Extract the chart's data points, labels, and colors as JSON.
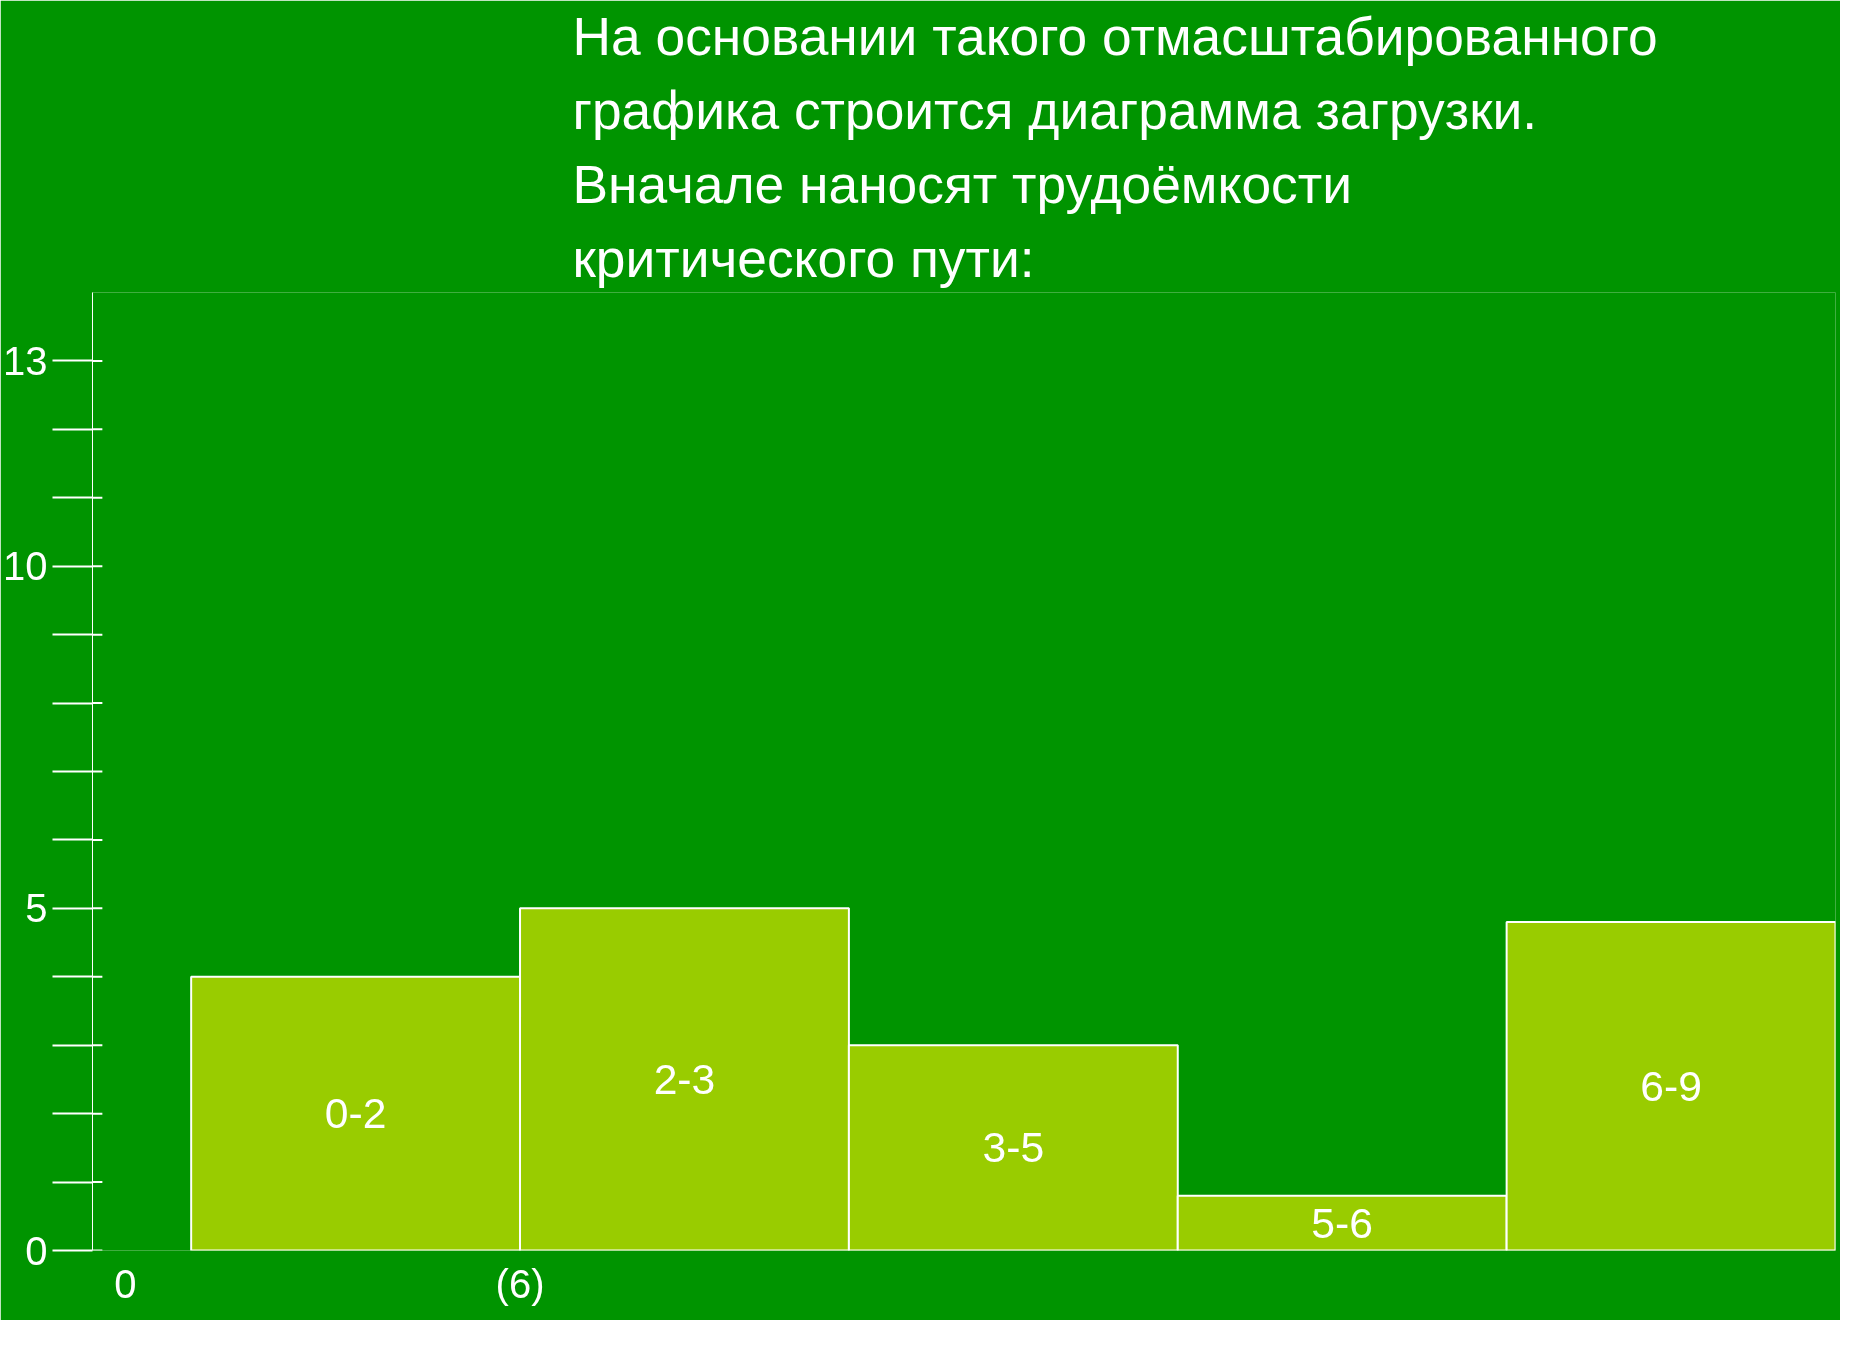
{
  "chart_data": {
    "type": "bar",
    "title": "На основании такого отмасштабированного графика строится диаграмма загрузки. Вначале наносят трудоёмкости критического пути:",
    "categories": [
      "0-2",
      "2-3",
      "3-5",
      "5-6",
      "6-9"
    ],
    "values": [
      4,
      5,
      3,
      0.8,
      4.8
    ],
    "color": "#99cc00",
    "ylim": [
      0,
      14
    ],
    "yticks": [
      0,
      {
        "value": 1,
        "label": null
      },
      {
        "value": 2,
        "label": null
      },
      {
        "value": 3,
        "label": null
      },
      {
        "value": 4,
        "label": null
      },
      5,
      {
        "value": 6,
        "label": null
      },
      {
        "value": 7,
        "label": null
      },
      {
        "value": 8,
        "label": null
      },
      {
        "value": 9,
        "label": null
      },
      10,
      {
        "value": 11,
        "label": null
      },
      {
        "value": 12,
        "label": null
      },
      13
    ],
    "annotations": [
      "0",
      "(6)"
    ],
    "grid": false
  }
}
